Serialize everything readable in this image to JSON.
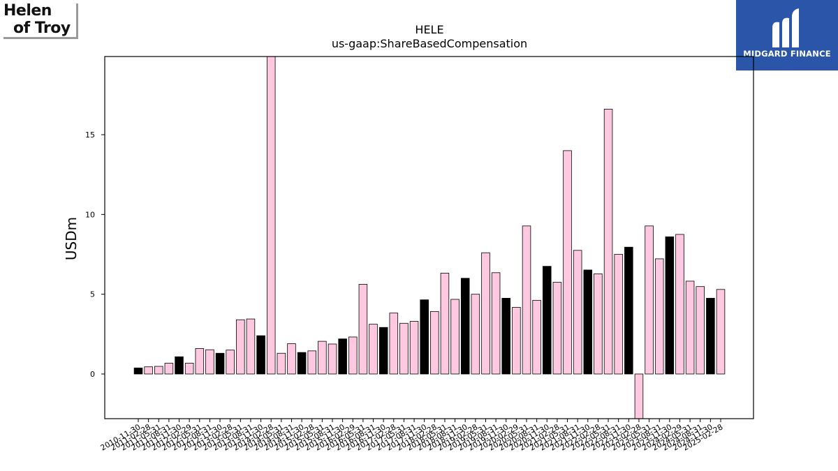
{
  "logos": {
    "left_line1": "Helen",
    "left_line2": "of Troy",
    "right_text": "MIDGARD FINANCE"
  },
  "chart_data": {
    "type": "bar",
    "title": "HELE",
    "subtitle": "us-gaap:ShareBasedCompensation",
    "xlabel": "",
    "ylabel": "USDm",
    "ylim": [
      -2.8,
      19.9
    ],
    "yticks": [
      0,
      5,
      10,
      15
    ],
    "grid": false,
    "colors": {
      "highlight": "#000000",
      "normal": "#ffc8e1",
      "edge": "#000000"
    },
    "categories": [
      "2010-11-30",
      "2011-02-28",
      "2011-05-31",
      "2011-08-31",
      "2011-11-30",
      "2012-02-29",
      "2012-05-31",
      "2012-08-31",
      "2012-11-30",
      "2013-02-28",
      "2013-05-31",
      "2013-08-31",
      "2013-11-30",
      "2014-02-28",
      "2014-05-31",
      "2014-08-31",
      "2014-11-30",
      "2015-02-28",
      "2015-05-31",
      "2015-08-31",
      "2015-11-30",
      "2016-02-29",
      "2016-05-31",
      "2016-08-31",
      "2016-11-30",
      "2017-02-28",
      "2017-05-31",
      "2017-08-31",
      "2017-11-30",
      "2018-02-28",
      "2018-05-31",
      "2018-08-31",
      "2018-11-30",
      "2019-02-28",
      "2019-05-31",
      "2019-08-31",
      "2019-11-30",
      "2020-02-29",
      "2020-05-31",
      "2020-08-31",
      "2020-11-30",
      "2021-02-28",
      "2021-05-31",
      "2021-08-31",
      "2021-11-30",
      "2022-02-28",
      "2022-05-31",
      "2022-08-31",
      "2022-11-30",
      "2023-02-28",
      "2023-05-31",
      "2023-08-31",
      "2023-11-30",
      "2024-02-29",
      "2024-05-31",
      "2024-08-31",
      "2024-11-30",
      "2025-02-28"
    ],
    "values": [
      0.38,
      0.45,
      0.48,
      0.68,
      1.08,
      0.68,
      1.6,
      1.52,
      1.3,
      1.5,
      3.4,
      3.45,
      2.4,
      19.9,
      1.3,
      1.9,
      1.35,
      1.45,
      2.05,
      1.88,
      2.2,
      2.32,
      5.62,
      3.12,
      2.92,
      3.82,
      3.18,
      3.3,
      4.65,
      3.92,
      6.32,
      4.68,
      6.0,
      5.0,
      7.6,
      6.35,
      4.75,
      4.18,
      9.28,
      4.62,
      6.75,
      5.75,
      14.0,
      7.75,
      6.52,
      6.28,
      16.6,
      7.5,
      7.95,
      -2.8,
      9.28,
      7.22,
      8.6,
      8.75,
      5.82,
      5.48,
      4.75,
      5.3
    ],
    "highlight": [
      true,
      false,
      false,
      false,
      true,
      false,
      false,
      false,
      true,
      false,
      false,
      false,
      true,
      false,
      false,
      false,
      true,
      false,
      false,
      false,
      true,
      false,
      false,
      false,
      true,
      false,
      false,
      false,
      true,
      false,
      false,
      false,
      true,
      false,
      false,
      false,
      true,
      false,
      false,
      false,
      true,
      false,
      false,
      false,
      true,
      false,
      false,
      false,
      true,
      false,
      false,
      false,
      true,
      false,
      false,
      false,
      true,
      false
    ]
  }
}
